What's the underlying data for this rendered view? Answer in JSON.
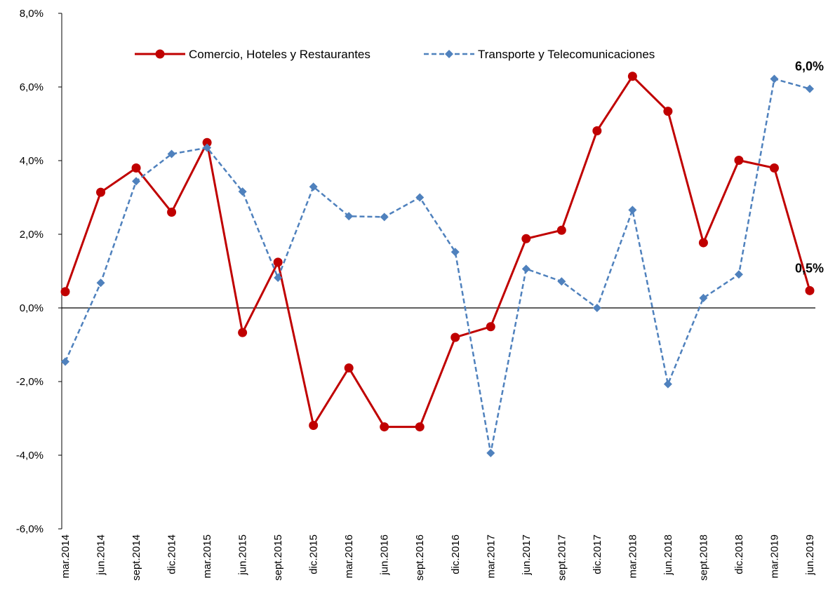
{
  "chart_data": {
    "type": "line",
    "categories": [
      "mar.2014",
      "jun.2014",
      "sept.2014",
      "dic.2014",
      "mar.2015",
      "jun.2015",
      "sept.2015",
      "dic.2015",
      "mar.2016",
      "jun.2016",
      "sept.2016",
      "dic.2016",
      "mar.2017",
      "jun.2017",
      "sept.2017",
      "dic.2017",
      "mar.2018",
      "jun.2018",
      "sept.2018",
      "dic.2018",
      "mar.2019",
      "jun.2019"
    ],
    "series": [
      {
        "name": "Comercio, Hoteles y Restaurantes",
        "color": "#c00000",
        "marker": "circle",
        "dashed": false,
        "values": [
          0.44,
          3.14,
          3.8,
          2.6,
          4.49,
          -0.67,
          1.24,
          -3.19,
          -1.63,
          -3.23,
          -3.23,
          -0.8,
          -0.51,
          1.88,
          2.11,
          4.81,
          6.29,
          5.34,
          1.77,
          4.01,
          3.8,
          0.47
        ],
        "value_labels": [
          null,
          null,
          null,
          null,
          null,
          null,
          null,
          null,
          null,
          null,
          null,
          null,
          null,
          null,
          null,
          null,
          null,
          null,
          null,
          null,
          null,
          "0,5%"
        ]
      },
      {
        "name": "Transporte y Telecomunicaciones",
        "color": "#4f81bd",
        "marker": "diamond",
        "dashed": true,
        "values": [
          -1.46,
          0.68,
          3.44,
          4.18,
          4.35,
          3.16,
          0.82,
          3.29,
          2.49,
          2.47,
          3.0,
          1.52,
          -3.94,
          1.06,
          0.72,
          0,
          2.66,
          -2.07,
          0.27,
          0.91,
          6.22,
          5.95
        ],
        "value_labels": [
          null,
          null,
          null,
          null,
          null,
          null,
          null,
          null,
          null,
          null,
          null,
          null,
          null,
          null,
          null,
          null,
          null,
          null,
          null,
          null,
          null,
          "6,0%"
        ]
      }
    ],
    "ylim": [
      -6,
      8
    ],
    "yticks": [
      {
        "value": -6,
        "label": "-6,0%"
      },
      {
        "value": -4,
        "label": "-4,0%"
      },
      {
        "value": -2,
        "label": "-2,0%"
      },
      {
        "value": 0,
        "label": "0,0%"
      },
      {
        "value": 2,
        "label": "2,0%"
      },
      {
        "value": 4,
        "label": "4,0%"
      },
      {
        "value": 6,
        "label": "6,0%"
      },
      {
        "value": 8,
        "label": "8,0%"
      }
    ],
    "grid": false,
    "legend": "top"
  }
}
